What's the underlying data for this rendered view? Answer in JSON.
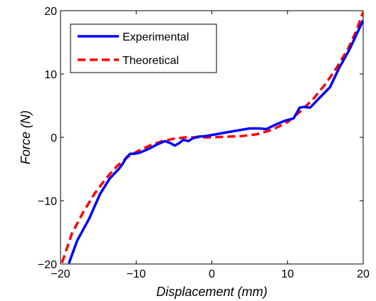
{
  "chart_data": {
    "type": "line",
    "title": "",
    "xlabel": "Displacement (mm)",
    "ylabel": "Force (N)",
    "xlim": [
      -20,
      20
    ],
    "ylim": [
      -20,
      20
    ],
    "xticks": [
      -20,
      -10,
      0,
      10,
      20
    ],
    "yticks": [
      -20,
      -10,
      0,
      10,
      20
    ],
    "xtick_labels": [
      "−20",
      "−10",
      "0",
      "10",
      "20"
    ],
    "ytick_labels": [
      "−20",
      "−10",
      "0",
      "10",
      "20"
    ],
    "grid": false,
    "legend_position": "top-left",
    "series": [
      {
        "name": "Experimental",
        "color": "#0000ff",
        "style": "solid",
        "x": [
          -18.9,
          -17.8,
          -16.2,
          -14.8,
          -13.5,
          -12.3,
          -11.8,
          -11.3,
          -10.8,
          -10.2,
          -9.5,
          -8.3,
          -7.2,
          -6.2,
          -5.5,
          -4.9,
          -4.3,
          -3.8,
          -3.1,
          -2.6,
          -1.9,
          -0.8,
          0.6,
          2.0,
          3.5,
          5.0,
          6.2,
          7.2,
          8.4,
          9.6,
          10.8,
          11.6,
          12.2,
          13.0,
          14.2,
          15.6,
          16.8,
          18.2,
          20.0
        ],
        "y": [
          -19.9,
          -16.3,
          -12.8,
          -9.0,
          -6.5,
          -5.0,
          -4.2,
          -3.2,
          -2.6,
          -2.6,
          -2.4,
          -1.8,
          -1.1,
          -0.6,
          -0.9,
          -1.3,
          -0.9,
          -0.4,
          -0.6,
          -0.2,
          0.1,
          0.2,
          0.5,
          0.8,
          1.1,
          1.4,
          1.4,
          1.3,
          2.0,
          2.6,
          3.0,
          4.7,
          4.8,
          4.7,
          6.2,
          7.9,
          10.9,
          13.9,
          18.5
        ]
      },
      {
        "name": "Theoretical",
        "color": "#ff0000",
        "style": "dashed",
        "x": [
          -19.8,
          -18.5,
          -17.0,
          -15.5,
          -14.0,
          -12.5,
          -11.0,
          -9.5,
          -8.0,
          -6.5,
          -5.0,
          -3.5,
          -2.0,
          0.0,
          2.0,
          4.0,
          6.0,
          8.0,
          10.0,
          11.0,
          12.0,
          13.5,
          15.0,
          16.5,
          18.0,
          19.0,
          20.0
        ],
        "y": [
          -19.8,
          -15.2,
          -11.8,
          -8.9,
          -6.5,
          -4.5,
          -3.0,
          -2.0,
          -1.2,
          -0.6,
          -0.2,
          0.0,
          0.0,
          0.0,
          0.1,
          0.2,
          0.5,
          1.2,
          2.4,
          3.4,
          4.4,
          6.2,
          8.4,
          11.0,
          14.0,
          16.6,
          19.8
        ]
      }
    ]
  }
}
